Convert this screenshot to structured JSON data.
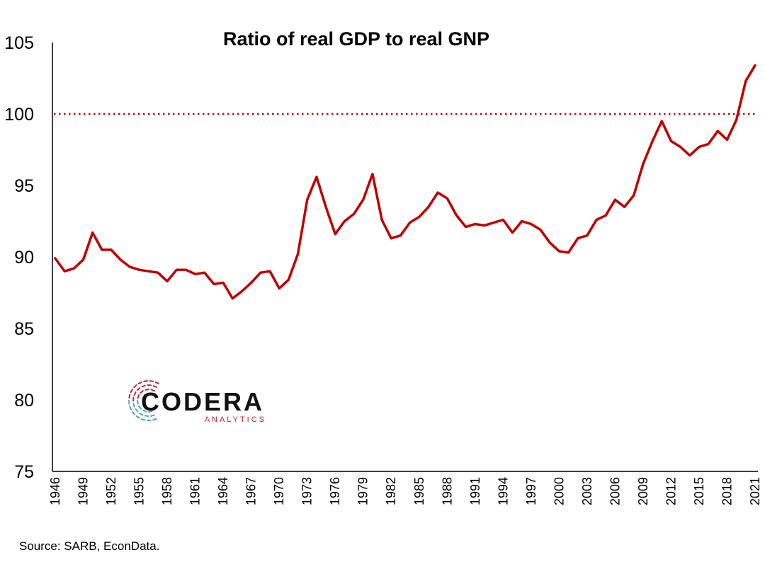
{
  "chart_data": {
    "type": "line",
    "title": "Ratio of real GDP to real GNP",
    "source": "Source: SARB, EconData.",
    "xlabel": "",
    "ylabel": "",
    "ylim": [
      75,
      105
    ],
    "yticks": [
      "75",
      "80",
      "85",
      "90",
      "95",
      "100",
      "105"
    ],
    "reference_line": {
      "y": 100,
      "style": "dotted",
      "color": "#C00000"
    },
    "grid": false,
    "x": [
      1946,
      1947,
      1948,
      1949,
      1950,
      1951,
      1952,
      1953,
      1954,
      1955,
      1956,
      1957,
      1958,
      1959,
      1960,
      1961,
      1962,
      1963,
      1964,
      1965,
      1966,
      1967,
      1968,
      1969,
      1970,
      1971,
      1972,
      1973,
      1974,
      1975,
      1976,
      1977,
      1978,
      1979,
      1980,
      1981,
      1982,
      1983,
      1984,
      1985,
      1986,
      1987,
      1988,
      1989,
      1990,
      1991,
      1992,
      1993,
      1994,
      1995,
      1996,
      1997,
      1998,
      1999,
      2000,
      2001,
      2002,
      2003,
      2004,
      2005,
      2006,
      2007,
      2008,
      2009,
      2010,
      2011,
      2012,
      2013,
      2014,
      2015,
      2016,
      2017,
      2018,
      2019,
      2020,
      2021
    ],
    "xticks": [
      "1946",
      "1949",
      "1952",
      "1955",
      "1958",
      "1961",
      "1964",
      "1967",
      "1970",
      "1973",
      "1976",
      "1979",
      "1982",
      "1985",
      "1988",
      "1991",
      "1994",
      "1997",
      "2000",
      "2003",
      "2006",
      "2009",
      "2012",
      "2015",
      "2018",
      "2021"
    ],
    "series": [
      {
        "color": "#C00000",
        "values": [
          89.9,
          89.0,
          89.2,
          89.8,
          91.7,
          90.5,
          90.5,
          89.8,
          89.3,
          89.1,
          89.0,
          88.9,
          88.3,
          89.1,
          89.1,
          88.8,
          88.9,
          88.1,
          88.2,
          87.1,
          87.6,
          88.2,
          88.9,
          89.0,
          87.8,
          88.4,
          90.2,
          94.0,
          95.6,
          93.5,
          91.6,
          92.5,
          93.0,
          94.0,
          95.8,
          92.6,
          91.3,
          91.5,
          92.4,
          92.8,
          93.5,
          94.5,
          94.1,
          92.9,
          92.1,
          92.3,
          92.2,
          92.4,
          92.6,
          91.7,
          92.5,
          92.3,
          91.9,
          91.0,
          90.4,
          90.3,
          91.3,
          91.5,
          92.6,
          92.9,
          94.0,
          93.5,
          94.3,
          96.5,
          98.1,
          99.5,
          98.1,
          97.7,
          97.1,
          97.7,
          97.9,
          98.8,
          98.2,
          99.6,
          102.3,
          103.4
        ]
      }
    ]
  },
  "logo": {
    "name": "CODERA",
    "tagline": "ANALYTICS",
    "colors": {
      "text": "#111111",
      "red": "#C0283A",
      "blue": "#4FA3C7"
    }
  }
}
